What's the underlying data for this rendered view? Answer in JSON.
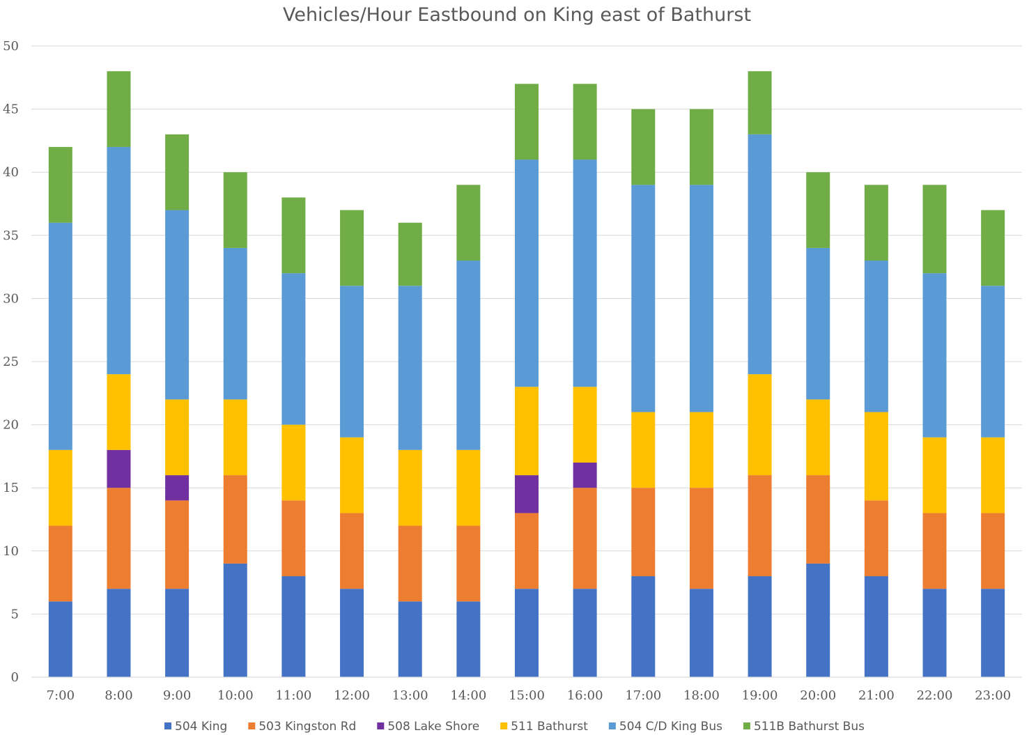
{
  "chart_data": {
    "type": "bar",
    "stacked": true,
    "title": "Vehicles/Hour Eastbound on King east of Bathurst",
    "xlabel": "",
    "ylabel": "",
    "ylim": [
      0,
      50
    ],
    "yticks": [
      0,
      5,
      10,
      15,
      20,
      25,
      30,
      35,
      40,
      45,
      50
    ],
    "grid": true,
    "legend_position": "bottom",
    "categories": [
      "7:00",
      "8:00",
      "9:00",
      "10:00",
      "11:00",
      "12:00",
      "13:00",
      "14:00",
      "15:00",
      "16:00",
      "17:00",
      "18:00",
      "19:00",
      "20:00",
      "21:00",
      "22:00",
      "23:00"
    ],
    "series": [
      {
        "name": "504 King",
        "color": "#4472C4",
        "values": [
          6,
          7,
          7,
          9,
          8,
          7,
          6,
          6,
          7,
          7,
          8,
          7,
          8,
          9,
          8,
          7,
          7
        ]
      },
      {
        "name": "503 Kingston Rd",
        "color": "#ED7D31",
        "values": [
          6,
          8,
          7,
          7,
          6,
          6,
          6,
          6,
          6,
          8,
          7,
          8,
          8,
          7,
          6,
          6,
          6
        ]
      },
      {
        "name": "508 Lake Shore",
        "color": "#7030A0",
        "values": [
          0,
          3,
          2,
          0,
          0,
          0,
          0,
          0,
          3,
          2,
          0,
          0,
          0,
          0,
          0,
          0,
          0
        ]
      },
      {
        "name": "511 Bathurst",
        "color": "#FFC000",
        "values": [
          6,
          6,
          6,
          6,
          6,
          6,
          6,
          6,
          7,
          6,
          6,
          6,
          8,
          6,
          7,
          6,
          6
        ]
      },
      {
        "name": "504 C/D King Bus",
        "color": "#5B9BD5",
        "values": [
          18,
          18,
          15,
          12,
          12,
          12,
          13,
          15,
          18,
          18,
          18,
          18,
          19,
          12,
          12,
          13,
          12
        ]
      },
      {
        "name": "511B Bathurst Bus",
        "color": "#70AD47",
        "values": [
          6,
          6,
          6,
          6,
          6,
          6,
          5,
          6,
          6,
          6,
          6,
          6,
          5,
          6,
          6,
          7,
          6
        ]
      }
    ]
  }
}
